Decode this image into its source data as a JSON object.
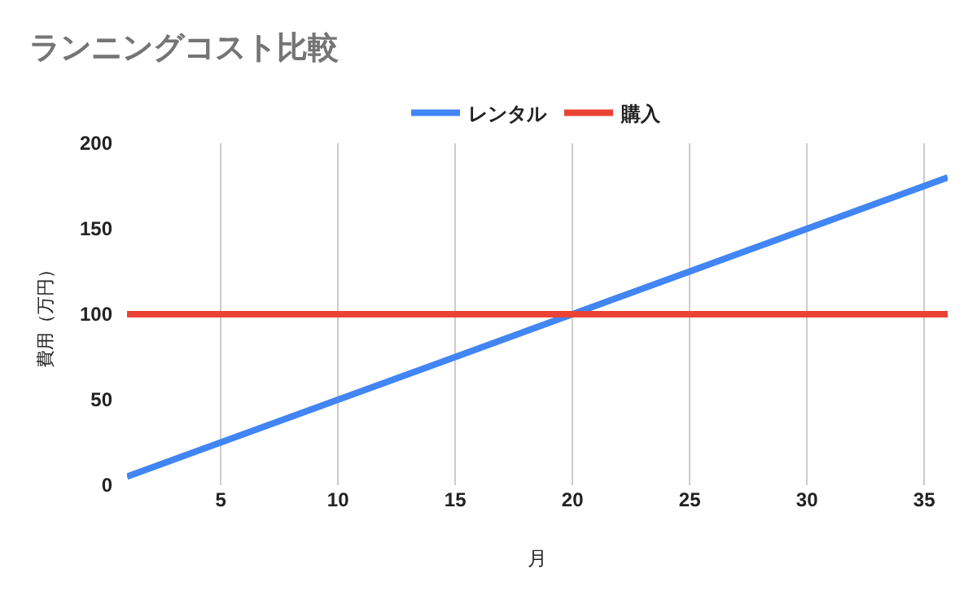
{
  "chart_data": {
    "type": "line",
    "title": "ランニングコスト比較",
    "xlabel": "月",
    "ylabel": "費用（万円）",
    "x": [
      1,
      36
    ],
    "series": [
      {
        "name": "レンタル",
        "color": "#4285f4",
        "values": [
          5,
          180
        ]
      },
      {
        "name": "購入",
        "color": "#ea4335",
        "values": [
          100,
          100
        ]
      }
    ],
    "xlim": [
      1,
      36
    ],
    "xticks": [
      5,
      10,
      15,
      20,
      25,
      30,
      35
    ],
    "ylim": [
      0,
      200
    ],
    "yticks": [
      0,
      50,
      100,
      150,
      200
    ],
    "grid": "x",
    "legend": "top",
    "marker": "none",
    "line_style": "solid"
  }
}
